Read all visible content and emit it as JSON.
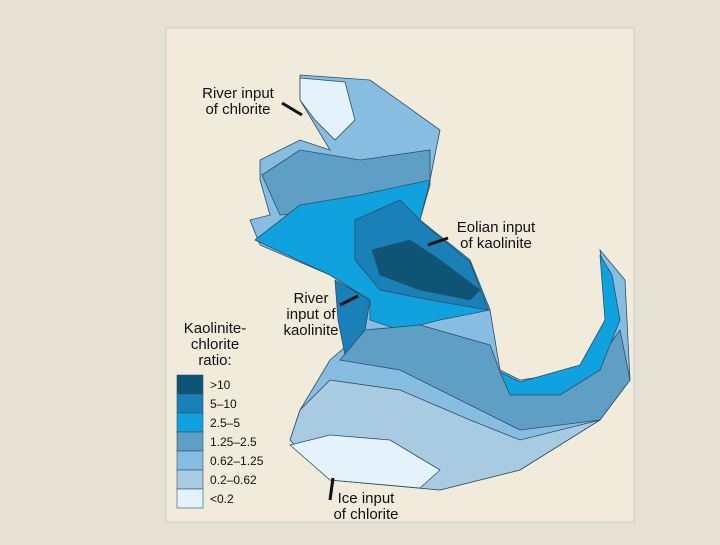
{
  "map": {
    "annotations": [
      {
        "lines": [
          "River input",
          "of chlorite"
        ]
      },
      {
        "lines": [
          "Eolian input",
          "of kaolinite"
        ]
      },
      {
        "lines": [
          "River",
          "input of",
          "kaolinite"
        ]
      },
      {
        "lines": [
          "Ice input",
          "of chlorite"
        ]
      }
    ],
    "legend": {
      "title": [
        "Kaolinite-",
        "chlorite",
        "ratio:"
      ],
      "items": [
        {
          "label": ">10",
          "color": "#0d5475"
        },
        {
          "label": "5–10",
          "color": "#1a80b8"
        },
        {
          "label": "2.5–5",
          "color": "#10a2df"
        },
        {
          "label": "1.25–2.5",
          "color": "#5f9ec5"
        },
        {
          "label": "0.62–1.25",
          "color": "#86bde0"
        },
        {
          "label": "0.2–0.62",
          "color": "#a9cbe2"
        },
        {
          "label": "<0.2",
          "color": "#e3f2fb"
        }
      ]
    }
  }
}
